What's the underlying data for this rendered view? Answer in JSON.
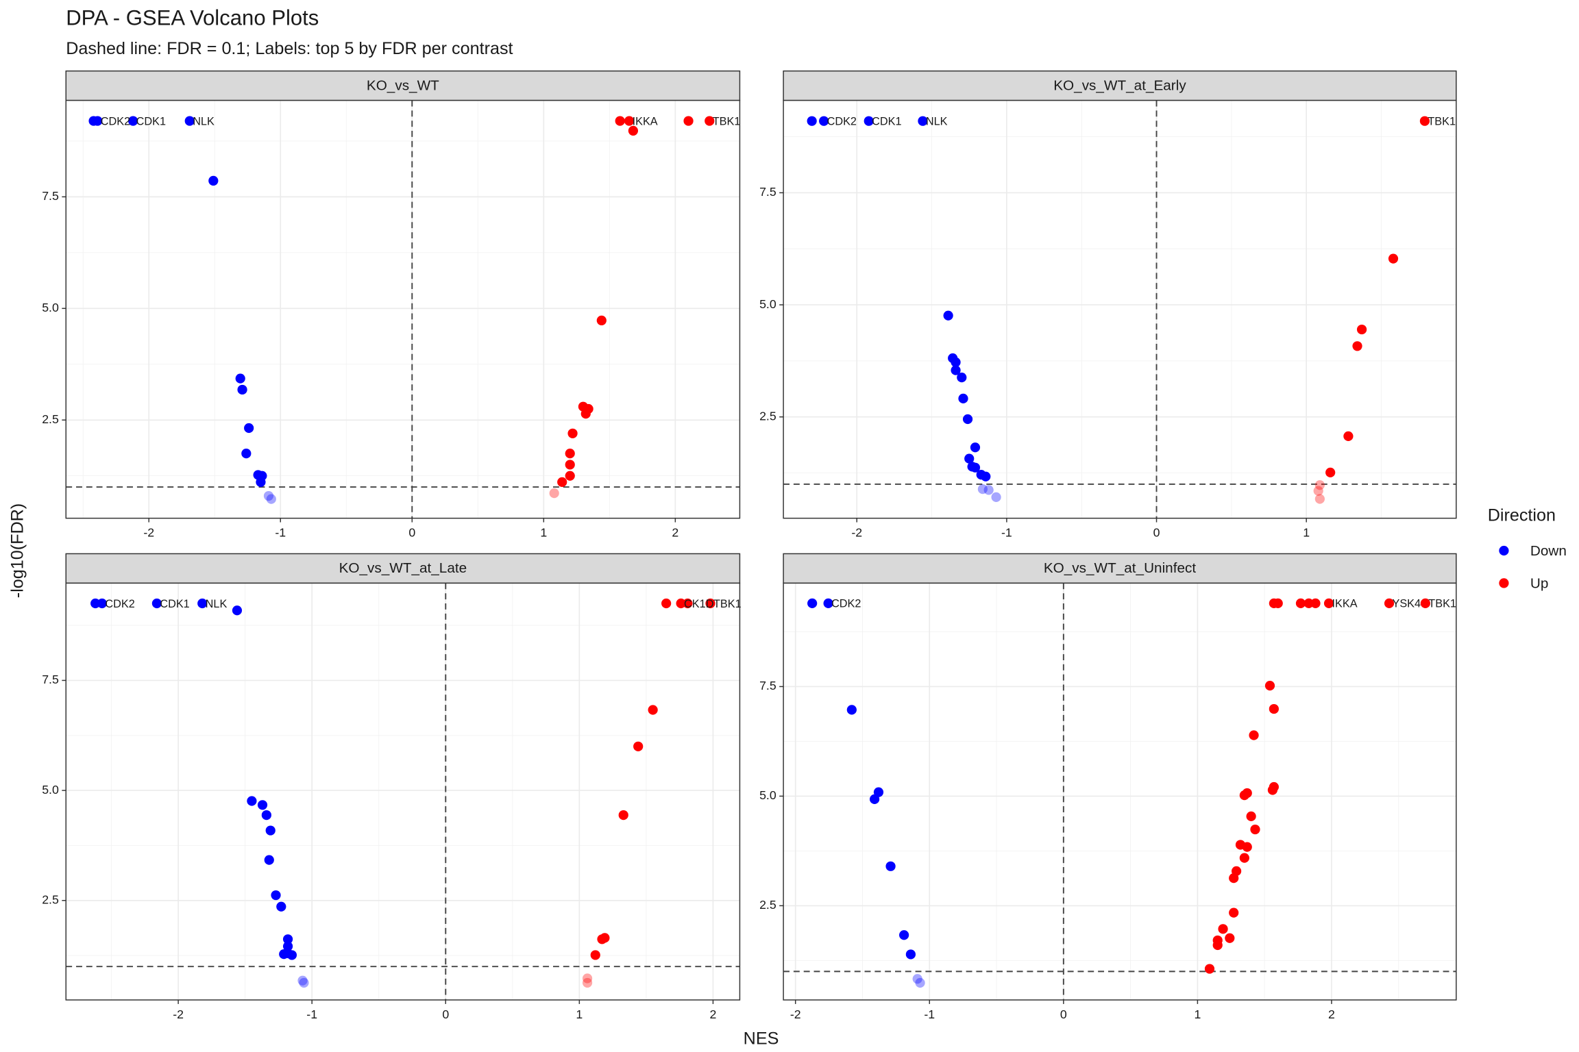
{
  "title": "DPA - GSEA Volcano Plots",
  "subtitle": "Dashed line: FDR = 0.1; Labels: top 5 by FDR per contrast",
  "x_label": "NES",
  "y_label": "-log10(FDR)",
  "legend_title": "Direction",
  "chart_data": [
    {
      "type": "scatter",
      "title": "KO_vs_WT",
      "xlim": [
        -2.63,
        2.49
      ],
      "ylim": [
        0.3,
        9.66
      ],
      "xticks": [
        -2,
        -1,
        0,
        1,
        2
      ],
      "yticks": [
        2.5,
        {
          "value": 5,
          "label": "5.0"
        },
        7.5
      ],
      "hline": 1,
      "vline": 0,
      "grid": true,
      "series": [
        {
          "name": "Down",
          "color": "#0000ff",
          "x": [
            -2.42,
            -2.39,
            -2.12,
            -1.69,
            -1.51,
            -1.305,
            -1.29,
            -1.24,
            -1.26,
            -1.17,
            -1.14,
            -1.15,
            -1.09,
            -1.07
          ],
          "values": [
            9.2,
            9.2,
            9.2,
            9.2,
            7.86,
            3.43,
            3.18,
            2.32,
            1.75,
            1.27,
            1.25,
            1.11,
            0.8,
            0.73
          ],
          "labels": [
            null,
            "CDK2",
            "CDK1",
            "NLK",
            null,
            null,
            null,
            null,
            null,
            null,
            null,
            null,
            null,
            null
          ]
        },
        {
          "name": "Up",
          "color": "#ff0000",
          "x": [
            1.58,
            1.65,
            1.68,
            2.1,
            2.26,
            1.44,
            1.3,
            1.34,
            1.32,
            1.22,
            1.2,
            1.2,
            1.2,
            1.14,
            1.08
          ],
          "values": [
            9.2,
            9.2,
            8.98,
            9.2,
            9.2,
            4.73,
            2.8,
            2.75,
            2.64,
            2.2,
            1.75,
            1.5,
            1.25,
            1.11,
            0.86
          ],
          "labels": [
            null,
            "IKKA",
            null,
            null,
            "TBK1",
            null,
            null,
            null,
            null,
            null,
            null,
            null,
            null,
            null,
            null
          ]
        }
      ]
    },
    {
      "type": "scatter",
      "title": "KO_vs_WT_at_Early",
      "xlim": [
        -2.49,
        2.0
      ],
      "ylim": [
        0.24,
        9.56
      ],
      "xticks": [
        -2,
        -1,
        0,
        1
      ],
      "yticks": [
        2.5,
        {
          "value": 5,
          "label": "5.0"
        },
        7.5
      ],
      "hline": 1,
      "vline": 0,
      "grid": true,
      "series": [
        {
          "name": "Down",
          "color": "#0000ff",
          "x": [
            -2.3,
            -2.22,
            -1.92,
            -1.56,
            -1.39,
            -1.36,
            -1.34,
            -1.34,
            -1.3,
            -1.29,
            -1.26,
            -1.21,
            -1.25,
            -1.23,
            -1.21,
            -1.17,
            -1.14,
            -1.16,
            -1.12,
            -1.07
          ],
          "values": [
            9.1,
            9.1,
            9.1,
            9.1,
            4.76,
            3.81,
            3.72,
            3.54,
            3.38,
            2.91,
            2.45,
            1.82,
            1.57,
            1.39,
            1.37,
            1.21,
            1.17,
            0.89,
            0.87,
            0.71
          ],
          "labels": [
            null,
            "CDK2",
            "CDK1",
            "NLK",
            null,
            null,
            null,
            null,
            null,
            null,
            null,
            null,
            null,
            null,
            null,
            null,
            null,
            null,
            null,
            null
          ]
        },
        {
          "name": "Up",
          "color": "#ff0000",
          "x": [
            1.79,
            1.58,
            1.37,
            1.34,
            1.28,
            1.16,
            1.09,
            1.08,
            1.09
          ],
          "values": [
            9.1,
            6.03,
            4.45,
            4.08,
            2.07,
            1.26,
            0.98,
            0.85,
            0.67
          ],
          "labels": [
            "TBK1",
            null,
            null,
            null,
            null,
            null,
            null,
            null,
            null
          ]
        }
      ]
    },
    {
      "type": "scatter",
      "title": "KO_vs_WT_at_Late",
      "xlim": [
        -2.84,
        2.2
      ],
      "ylim": [
        0.24,
        9.71
      ],
      "xticks": [
        -2,
        -1,
        0,
        1,
        2
      ],
      "yticks": [
        2.5,
        {
          "value": 5,
          "label": "5.0"
        },
        7.5
      ],
      "hline": 1,
      "vline": 0,
      "grid": true,
      "series": [
        {
          "name": "Down",
          "color": "#0000ff",
          "x": [
            -2.62,
            -2.57,
            -2.16,
            -1.82,
            -1.56,
            -1.45,
            -1.37,
            -1.34,
            -1.31,
            -1.32,
            -1.27,
            -1.23,
            -1.18,
            -1.18,
            -1.18,
            -1.21,
            -1.15,
            -1.07,
            -1.06
          ],
          "values": [
            9.25,
            9.25,
            9.25,
            9.25,
            9.09,
            4.76,
            4.67,
            4.44,
            4.09,
            3.42,
            2.62,
            2.36,
            1.62,
            1.46,
            1.3,
            1.28,
            1.26,
            0.68,
            0.63
          ],
          "labels": [
            null,
            "CDK2",
            "CDK1",
            "NLK",
            null,
            null,
            null,
            null,
            null,
            null,
            null,
            null,
            null,
            null,
            null,
            null,
            null,
            null,
            null
          ]
        },
        {
          "name": "Up",
          "color": "#ff0000",
          "x": [
            1.65,
            1.76,
            1.81,
            1.98,
            1.55,
            1.44,
            1.33,
            1.19,
            1.17,
            1.12,
            1.06,
            1.06
          ],
          "values": [
            9.25,
            9.25,
            9.25,
            9.25,
            6.83,
            6.0,
            4.44,
            1.65,
            1.62,
            1.26,
            0.73,
            0.63
          ],
          "labels": [
            null,
            "CK1D",
            null,
            "TBK1",
            null,
            null,
            null,
            null,
            null,
            null,
            null,
            null
          ]
        }
      ]
    },
    {
      "type": "scatter",
      "title": "KO_vs_WT_at_Uninfect",
      "xlim": [
        -2.09,
        2.93
      ],
      "ylim": [
        0.35,
        9.86
      ],
      "xticks": [
        -2,
        -1,
        0,
        1,
        2
      ],
      "yticks": [
        2.5,
        {
          "value": 5,
          "label": "5.0"
        },
        7.5
      ],
      "hline": 1,
      "vline": 0,
      "grid": true,
      "series": [
        {
          "name": "Down",
          "color": "#0000ff",
          "x": [
            -1.875,
            -1.755,
            -1.58,
            -1.38,
            -1.41,
            -1.29,
            -1.19,
            -1.14,
            -1.09,
            -1.07
          ],
          "values": [
            9.4,
            9.4,
            6.97,
            5.09,
            4.93,
            3.4,
            1.83,
            1.39,
            0.83,
            0.74
          ],
          "labels": [
            null,
            "CDK2",
            null,
            null,
            null,
            null,
            null,
            null,
            null,
            null
          ]
        },
        {
          "name": "Up",
          "color": "#ff0000",
          "x": [
            1.57,
            1.6,
            1.77,
            1.83,
            1.88,
            1.98,
            2.43,
            2.7,
            1.54,
            1.57,
            1.42,
            1.57,
            1.56,
            1.37,
            1.35,
            1.4,
            1.43,
            1.32,
            1.37,
            1.35,
            1.29,
            1.27,
            1.27,
            1.19,
            1.24,
            1.15,
            1.15,
            1.09
          ],
          "values": [
            9.4,
            9.4,
            9.4,
            9.4,
            9.4,
            9.4,
            9.4,
            9.4,
            7.52,
            6.99,
            6.39,
            5.21,
            5.14,
            5.07,
            5.02,
            4.54,
            4.24,
            3.89,
            3.84,
            3.59,
            3.29,
            3.13,
            2.34,
            1.97,
            1.76,
            1.71,
            1.6,
            1.06
          ],
          "labels": [
            null,
            null,
            null,
            null,
            null,
            "IKKA",
            "YSK4",
            "TBK1",
            null,
            null,
            null,
            null,
            null,
            null,
            null,
            null,
            null,
            null,
            null,
            null,
            null,
            null,
            null,
            null,
            null,
            null,
            null,
            null
          ]
        }
      ]
    }
  ]
}
